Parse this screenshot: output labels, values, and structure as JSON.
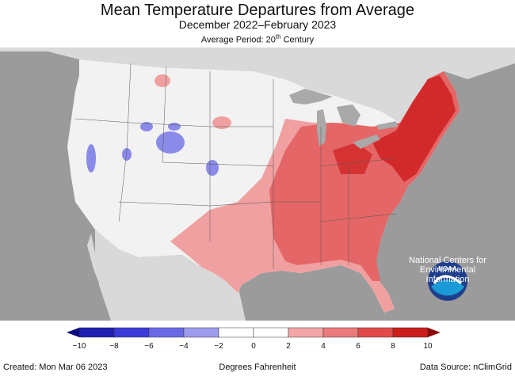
{
  "title": "Mean Temperature Departures from Average",
  "subtitle": "December 2022–February 2023",
  "period_prefix": "Average Period: 20",
  "period_sup": "th",
  "period_suffix": " Century",
  "noaa_logo_text": "NOAA",
  "org_line1": "National Centers for",
  "org_line2": "Environmental",
  "org_line3": "Information",
  "legend": {
    "ticks": [
      "−10",
      "−8",
      "−6",
      "−4",
      "−2",
      "0",
      "2",
      "4",
      "6",
      "8",
      "10"
    ],
    "units": "Degrees Fahrenheit",
    "colors": [
      "#1f1fb0",
      "#3a3ad8",
      "#6a6ae6",
      "#9d9df0",
      "#ffffff",
      "#ffffff",
      "#f4a6a6",
      "#ec7a7a",
      "#e24a4a",
      "#cc1d1d"
    ]
  },
  "footer": {
    "created": "Created: Mon Mar 06 2023",
    "source": "Data Source: nClimGrid"
  },
  "colors": {
    "ocean": "#9b9b9b",
    "land_outside": "#d9d9d9",
    "near_normal": "#f2f2f2",
    "warm_light": "#f0a0a0",
    "warm_mid": "#e56666",
    "warm_dark": "#d22a2a",
    "cool": "#8a8ae8",
    "lakes": "#a9a9a9"
  }
}
